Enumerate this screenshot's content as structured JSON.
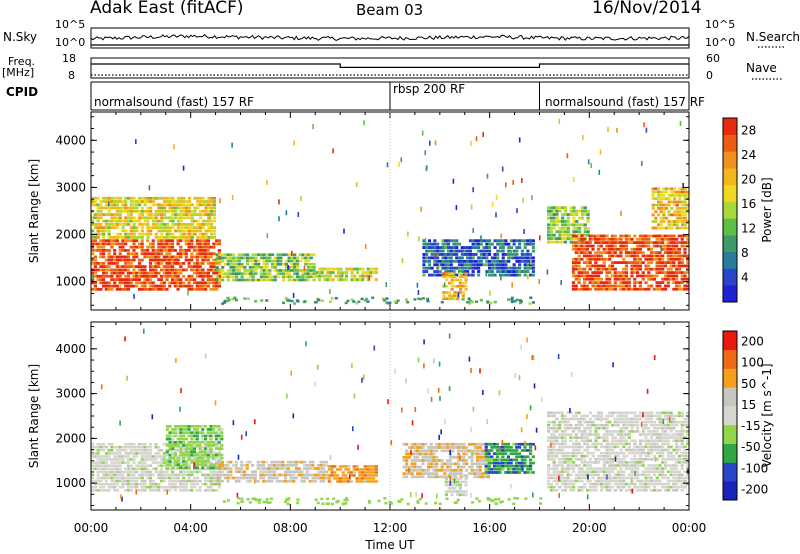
{
  "header": {
    "station": "Adak East (fitACF)",
    "beam": "Beam 03",
    "date": "16/Nov/2014"
  },
  "strip_labels": {
    "nsky": "N.Sky",
    "nsearch": "N.Search",
    "freq_line1": "Freq.",
    "freq_line2": "[MHz]",
    "nave": "Nave",
    "cpid": "CPID",
    "noise_tick_hi": "10^5",
    "noise_tick_lo": "10^0",
    "freq_tick_hi": "18",
    "freq_tick_lo": "8",
    "nave_tick_hi": "60",
    "nave_tick_lo": "0"
  },
  "cpid_segments": [
    {
      "label": "normalsound (fast) 157 RF",
      "start_h": 0.0
    },
    {
      "label": "rbsp 200 RF",
      "start_h": 12.0
    },
    {
      "label": "normalsound (fast) 157 RF",
      "start_h": 18.0
    }
  ],
  "colors": {
    "power_scale": [
      "#1f20d8",
      "#2a46c8",
      "#2a7c9e",
      "#3f9a6a",
      "#5fbe4a",
      "#a8d83a",
      "#f0d820",
      "#f2b71c",
      "#f08f1a",
      "#ec5c14",
      "#e82a10"
    ],
    "velocity_scale": [
      "#e81a10",
      "#f06a14",
      "#f5a01c",
      "#c7c7c0",
      "#d6d6cf",
      "#8fd64a",
      "#2fa840",
      "#2a46c8",
      "#1a24b8"
    ]
  },
  "chart_data": [
    {
      "type": "line",
      "title": "N.Sky / N.Search",
      "ylabel": "N.Sky",
      "y_ticks": [
        "10^0",
        "10^5"
      ],
      "series": [
        {
          "name": "N.Sky",
          "x": [
            0,
            2,
            4,
            6,
            8,
            10,
            12,
            14,
            16,
            18,
            20,
            22,
            24
          ],
          "values": [
            2.1,
            2.6,
            3.0,
            2.7,
            2.4,
            2.2,
            2.3,
            2.5,
            2.8,
            2.4,
            2.2,
            2.3,
            2.4
          ]
        },
        {
          "name": "N.Search",
          "x": [
            0,
            24
          ],
          "values": [
            0,
            0
          ]
        }
      ],
      "xlim": [
        0,
        24
      ]
    },
    {
      "type": "line",
      "title": "Freq. / Nave",
      "ylabel": "Freq. [MHz]",
      "y_ticks_left": [
        "8",
        "18"
      ],
      "y_ticks_right": [
        "0",
        "60"
      ],
      "series": [
        {
          "name": "Freq.",
          "x": [
            0,
            10,
            10,
            18,
            18,
            24
          ],
          "values": [
            15,
            15,
            13.3,
            13.3,
            15,
            15
          ]
        },
        {
          "name": "Nave",
          "x": [
            0,
            24
          ],
          "values": [
            15,
            15
          ]
        }
      ],
      "xlim": [
        0,
        24
      ]
    },
    {
      "type": "heatmap",
      "ylabel": "Slant Range [km]",
      "xlim": [
        0,
        24
      ],
      "ylim": [
        400,
        4600
      ],
      "y_ticks": [
        1000,
        2000,
        3000,
        4000
      ],
      "colorbar": {
        "label": "Power [dB]",
        "ticks": [
          4,
          8,
          12,
          16,
          20,
          24,
          28
        ],
        "range": [
          0,
          30
        ]
      },
      "regions": [
        {
          "x0": 0.0,
          "x1": 5.2,
          "y0": 800,
          "y1": 1900,
          "value": 27
        },
        {
          "x0": 0.0,
          "x1": 5.0,
          "y0": 1900,
          "y1": 2800,
          "value": 18
        },
        {
          "x0": 5.0,
          "x1": 9.0,
          "y0": 1000,
          "y1": 1600,
          "value": 14
        },
        {
          "x0": 9.0,
          "x1": 11.5,
          "y0": 1000,
          "y1": 1300,
          "value": 16
        },
        {
          "x0": 13.3,
          "x1": 17.8,
          "y0": 1100,
          "y1": 1900,
          "value": 6
        },
        {
          "x0": 14.1,
          "x1": 15.1,
          "y0": 600,
          "y1": 1200,
          "value": 20
        },
        {
          "x0": 18.3,
          "x1": 20.0,
          "y0": 1800,
          "y1": 2600,
          "value": 14
        },
        {
          "x0": 19.3,
          "x1": 24.0,
          "y0": 800,
          "y1": 2000,
          "value": 27
        },
        {
          "x0": 22.5,
          "x1": 24.0,
          "y0": 2100,
          "y1": 3000,
          "value": 20
        }
      ]
    },
    {
      "type": "heatmap",
      "ylabel": "Slant Range [km]",
      "xlabel": "Time UT",
      "xlim": [
        0,
        24
      ],
      "ylim": [
        400,
        4600
      ],
      "y_ticks": [
        1000,
        2000,
        3000,
        4000
      ],
      "x_ticks": [
        "00:00",
        "04:00",
        "08:00",
        "12:00",
        "16:00",
        "20:00",
        "00:00"
      ],
      "colorbar": {
        "label": "Velocity [m s^-1]",
        "ticks": [
          200,
          100,
          50,
          15,
          -15,
          -50,
          -100,
          -200
        ],
        "range": [
          -250,
          250
        ]
      },
      "regions": [
        {
          "x0": 0.0,
          "x1": 5.2,
          "y0": 800,
          "y1": 1900,
          "value": 0
        },
        {
          "x0": 3.0,
          "x1": 5.3,
          "y0": 1300,
          "y1": 2300,
          "value": -60
        },
        {
          "x0": 5.0,
          "x1": 9.5,
          "y0": 1000,
          "y1": 1500,
          "value": 60
        },
        {
          "x0": 9.5,
          "x1": 11.5,
          "y0": 1000,
          "y1": 1400,
          "value": 120
        },
        {
          "x0": 12.5,
          "x1": 16.0,
          "y0": 1100,
          "y1": 1900,
          "value": 70
        },
        {
          "x0": 15.8,
          "x1": 17.8,
          "y0": 1200,
          "y1": 1900,
          "value": -120
        },
        {
          "x0": 14.2,
          "x1": 15.1,
          "y0": 700,
          "y1": 1200,
          "value": 0
        },
        {
          "x0": 18.3,
          "x1": 24.0,
          "y0": 800,
          "y1": 2600,
          "value": 5
        }
      ]
    }
  ],
  "footer": {
    "xlabel": "Time UT"
  }
}
